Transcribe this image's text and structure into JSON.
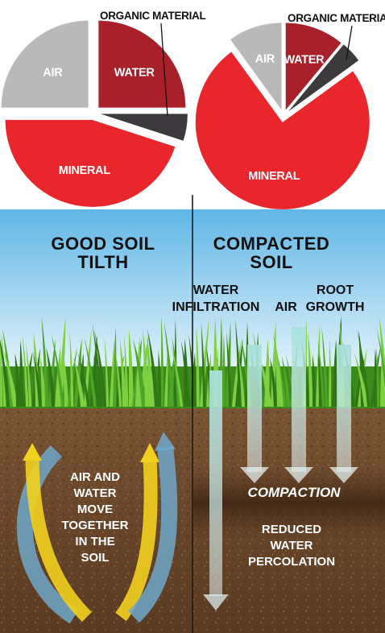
{
  "colors": {
    "air": "#b9b9b9",
    "water": "#a8202a",
    "organic": "#3c3a3d",
    "mineral": "#e8262c",
    "sky_top": "#5fb6e6",
    "sky_bottom": "#d9eff9",
    "soil": "#6b4a2e",
    "grass": "#3f8f1f",
    "arrow_yellow": "#f2d01f",
    "arrow_blue": "#6fa7c9"
  },
  "chart_data": [
    {
      "type": "pie",
      "title": "",
      "exploded": true,
      "slices": [
        {
          "label": "WATER",
          "value": 25
        },
        {
          "label": "ORGANIC MATERIAL",
          "value": 5
        },
        {
          "label": "MINERAL",
          "value": 45
        },
        {
          "label": "AIR",
          "value": 25
        }
      ]
    },
    {
      "type": "pie",
      "title": "",
      "exploded": true,
      "slices": [
        {
          "label": "WATER",
          "value": 11
        },
        {
          "label": "ORGANIC MATERIAL",
          "value": 4
        },
        {
          "label": "MINERAL",
          "value": 75
        },
        {
          "label": "AIR",
          "value": 10
        }
      ]
    }
  ],
  "panels": {
    "left": {
      "title_line1": "GOOD SOIL",
      "title_line2": "TILTH",
      "arrow_text": [
        "AIR AND",
        "WATER",
        "MOVE",
        "TOGETHER",
        "IN THE",
        "SOIL"
      ]
    },
    "right": {
      "title_line1": "COMPACTED",
      "title_line2": "SOIL",
      "label_water_1": "WATER",
      "label_water_2": "INFILTRATION",
      "label_air": "AIR",
      "label_root_1": "ROOT",
      "label_root_2": "GROWTH",
      "compaction": "COMPACTION",
      "reduced": [
        "REDUCED",
        "WATER",
        "PERCOLATION"
      ]
    }
  }
}
